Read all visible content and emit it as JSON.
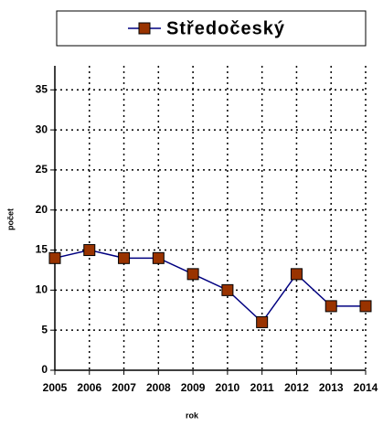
{
  "chart_data": {
    "type": "line",
    "legend": "top",
    "x": [
      2005,
      2006,
      2007,
      2008,
      2009,
      2010,
      2011,
      2012,
      2013,
      2014
    ],
    "xlim": [
      2005,
      2014
    ],
    "xticks": [
      2005,
      2006,
      2007,
      2008,
      2009,
      2010,
      2011,
      2012,
      2013,
      2014
    ],
    "xlabel": "rok",
    "ylabel": "počet",
    "ylim": [
      0,
      38
    ],
    "yticks": [
      0,
      5,
      10,
      15,
      20,
      25,
      30,
      35
    ],
    "grid": true,
    "series": [
      {
        "name": "Středočeský",
        "color": "#000080",
        "marker_color": "#993300",
        "values": [
          14,
          15,
          14,
          14,
          12,
          10,
          6,
          12,
          8,
          8
        ]
      }
    ]
  }
}
